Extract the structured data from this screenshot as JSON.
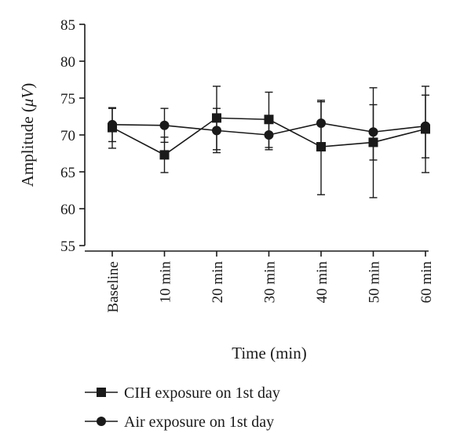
{
  "chart_data": {
    "type": "line",
    "categories": [
      "Baseline",
      "10 min",
      "20 min",
      "30 min",
      "40 min",
      "50 min",
      "60 min"
    ],
    "series": [
      {
        "name": "CIH exposure on 1st day",
        "marker": "square",
        "values": [
          71.0,
          67.3,
          72.3,
          72.1,
          68.4,
          69.0,
          70.8
        ],
        "error_upper": [
          73.6,
          69.7,
          76.6,
          75.8,
          74.5,
          76.4,
          75.4
        ],
        "error_lower": [
          68.2,
          64.9,
          68.0,
          68.3,
          61.9,
          61.5,
          66.9
        ]
      },
      {
        "name": "Air exposure on 1st day",
        "marker": "circle",
        "values": [
          71.4,
          71.3,
          70.6,
          70.0,
          71.6,
          70.4,
          71.2
        ],
        "error_upper": [
          73.7,
          73.6,
          73.6,
          72.0,
          74.7,
          74.1,
          76.6
        ],
        "error_lower": [
          69.1,
          69.0,
          67.6,
          68.0,
          68.4,
          66.6,
          64.9
        ]
      }
    ],
    "xlabel": "Time (min)",
    "ylabel_main": "Amplitude (",
    "ylabel_unit": "μV",
    "ylabel_close": ")",
    "ylim": [
      55,
      85
    ],
    "yticks": [
      55,
      60,
      65,
      70,
      75,
      80,
      85
    ],
    "grid": false,
    "legend_position": "bottom-left",
    "colors": {
      "ink": "#1a1a1a",
      "background": "#ffffff"
    }
  }
}
